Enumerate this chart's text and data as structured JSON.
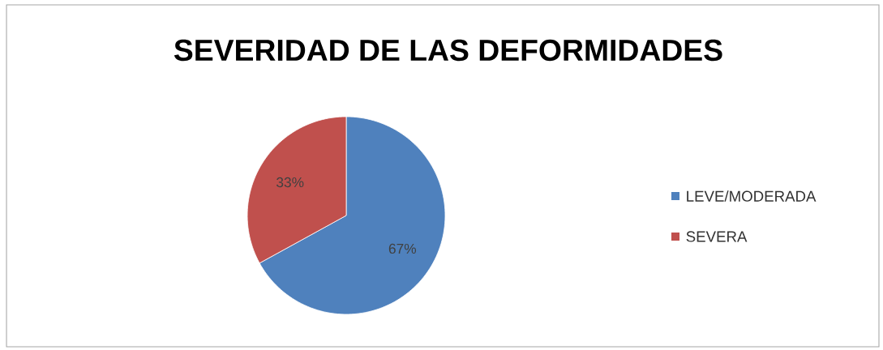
{
  "chart_data": {
    "type": "pie",
    "title": "SEVERIDAD DE LAS DEFORMIDADES",
    "categories": [
      "LEVE/MODERADA",
      "SEVERA"
    ],
    "values": [
      67,
      33
    ],
    "colors": [
      "#4f81bd",
      "#c0504d"
    ],
    "value_labels": [
      "67%",
      "33%"
    ],
    "legend": "right"
  }
}
